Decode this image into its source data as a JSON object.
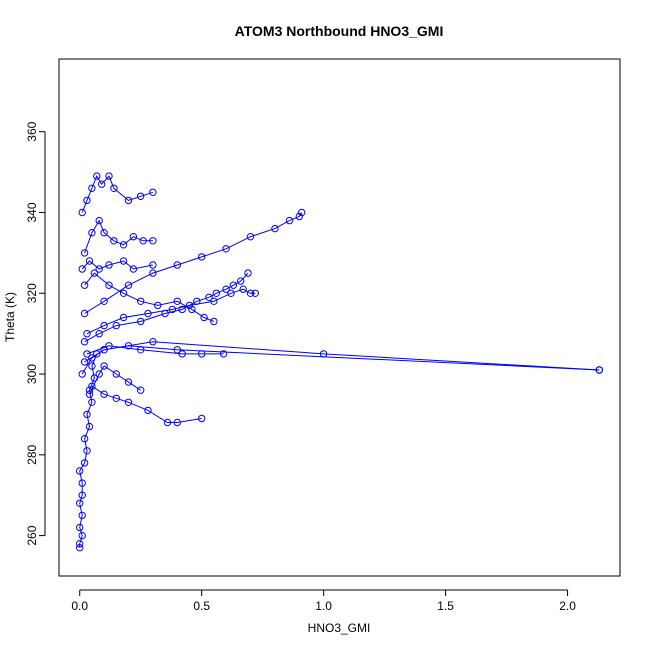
{
  "chart_data": {
    "type": "scatter",
    "title": "ATOM3 Northbound HNO3_GMI",
    "xlabel": "HNO3_GMI",
    "ylabel": "Theta (K)",
    "xlim": [
      -0.085,
      2.215
    ],
    "ylim": [
      250,
      378
    ],
    "xticks": [
      0.0,
      0.5,
      1.0,
      1.5,
      2.0
    ],
    "xtick_labels": [
      "0.0",
      "0.5",
      "1.0",
      "1.5",
      "2.0"
    ],
    "yticks": [
      260,
      280,
      300,
      320,
      340,
      360
    ],
    "ytick_labels": [
      "260",
      "280",
      "300",
      "320",
      "340",
      "360"
    ],
    "grid": false,
    "legend": "none",
    "colors": {
      "series": "#0000ff",
      "axis": "#000000"
    },
    "series": [
      {
        "marker": "open-circle",
        "connected": true,
        "segments": [
          [
            [
              0.0,
              257
            ],
            [
              0.0,
              258
            ],
            [
              0.01,
              260
            ],
            [
              0.0,
              262
            ],
            [
              0.01,
              265
            ],
            [
              0.0,
              268
            ],
            [
              0.01,
              270
            ],
            [
              0.01,
              273
            ],
            [
              0.0,
              276
            ],
            [
              0.02,
              278
            ],
            [
              0.03,
              281
            ],
            [
              0.02,
              284
            ],
            [
              0.04,
              287
            ],
            [
              0.03,
              290
            ],
            [
              0.05,
              293
            ],
            [
              0.04,
              296
            ],
            [
              0.06,
              299
            ],
            [
              0.05,
              302
            ],
            [
              0.07,
              305
            ]
          ],
          [
            [
              0.01,
              300
            ],
            [
              0.05,
              304
            ],
            [
              0.1,
              306
            ],
            [
              0.2,
              307
            ],
            [
              0.4,
              306
            ],
            [
              2.13,
              301
            ]
          ],
          [
            [
              0.02,
              303
            ],
            [
              0.1,
              306
            ],
            [
              0.3,
              308
            ],
            [
              1.0,
              305
            ],
            [
              2.13,
              301
            ]
          ],
          [
            [
              0.03,
              305
            ],
            [
              0.12,
              307
            ],
            [
              0.25,
              306
            ],
            [
              0.42,
              305
            ],
            [
              0.5,
              305
            ],
            [
              0.59,
              305
            ]
          ],
          [
            [
              0.02,
              308
            ],
            [
              0.08,
              310
            ],
            [
              0.15,
              312
            ],
            [
              0.25,
              313
            ],
            [
              0.35,
              315
            ],
            [
              0.42,
              316
            ],
            [
              0.48,
              318
            ],
            [
              0.53,
              319
            ],
            [
              0.56,
              320
            ],
            [
              0.6,
              321
            ],
            [
              0.63,
              322
            ],
            [
              0.66,
              323
            ],
            [
              0.69,
              325
            ]
          ],
          [
            [
              0.03,
              310
            ],
            [
              0.1,
              312
            ],
            [
              0.18,
              314
            ],
            [
              0.28,
              315
            ],
            [
              0.38,
              316
            ],
            [
              0.45,
              317
            ],
            [
              0.55,
              318
            ],
            [
              0.62,
              320
            ],
            [
              0.67,
              321
            ],
            [
              0.7,
              320
            ],
            [
              0.72,
              320
            ]
          ],
          [
            [
              0.02,
              315
            ],
            [
              0.1,
              318
            ],
            [
              0.2,
              322
            ],
            [
              0.3,
              325
            ],
            [
              0.4,
              327
            ],
            [
              0.5,
              329
            ],
            [
              0.6,
              331
            ],
            [
              0.7,
              334
            ],
            [
              0.8,
              336
            ],
            [
              0.86,
              338
            ],
            [
              0.9,
              339
            ],
            [
              0.91,
              340
            ]
          ],
          [
            [
              0.04,
              295
            ],
            [
              0.08,
              300
            ],
            [
              0.1,
              302
            ],
            [
              0.15,
              300
            ],
            [
              0.2,
              298
            ],
            [
              0.25,
              296
            ]
          ],
          [
            [
              0.05,
              297
            ],
            [
              0.1,
              295
            ],
            [
              0.15,
              294
            ],
            [
              0.2,
              293
            ],
            [
              0.28,
              291
            ],
            [
              0.36,
              288
            ],
            [
              0.4,
              288
            ],
            [
              0.5,
              289
            ]
          ],
          [
            [
              0.02,
              330
            ],
            [
              0.05,
              335
            ],
            [
              0.08,
              338
            ],
            [
              0.1,
              335
            ],
            [
              0.14,
              333
            ],
            [
              0.18,
              332
            ],
            [
              0.22,
              334
            ],
            [
              0.26,
              333
            ],
            [
              0.3,
              333
            ]
          ],
          [
            [
              0.01,
              340
            ],
            [
              0.03,
              343
            ],
            [
              0.05,
              346
            ],
            [
              0.07,
              349
            ],
            [
              0.09,
              347
            ],
            [
              0.12,
              349
            ],
            [
              0.14,
              346
            ],
            [
              0.2,
              343
            ],
            [
              0.25,
              344
            ],
            [
              0.3,
              345
            ]
          ],
          [
            [
              0.02,
              322
            ],
            [
              0.06,
              325
            ],
            [
              0.12,
              322
            ],
            [
              0.18,
              320
            ],
            [
              0.25,
              318
            ],
            [
              0.32,
              317
            ],
            [
              0.4,
              318
            ],
            [
              0.46,
              316
            ],
            [
              0.51,
              314
            ],
            [
              0.55,
              313
            ]
          ],
          [
            [
              0.01,
              326
            ],
            [
              0.04,
              328
            ],
            [
              0.08,
              326
            ],
            [
              0.12,
              327
            ],
            [
              0.18,
              328
            ],
            [
              0.22,
              326
            ],
            [
              0.3,
              327
            ]
          ]
        ]
      }
    ]
  }
}
